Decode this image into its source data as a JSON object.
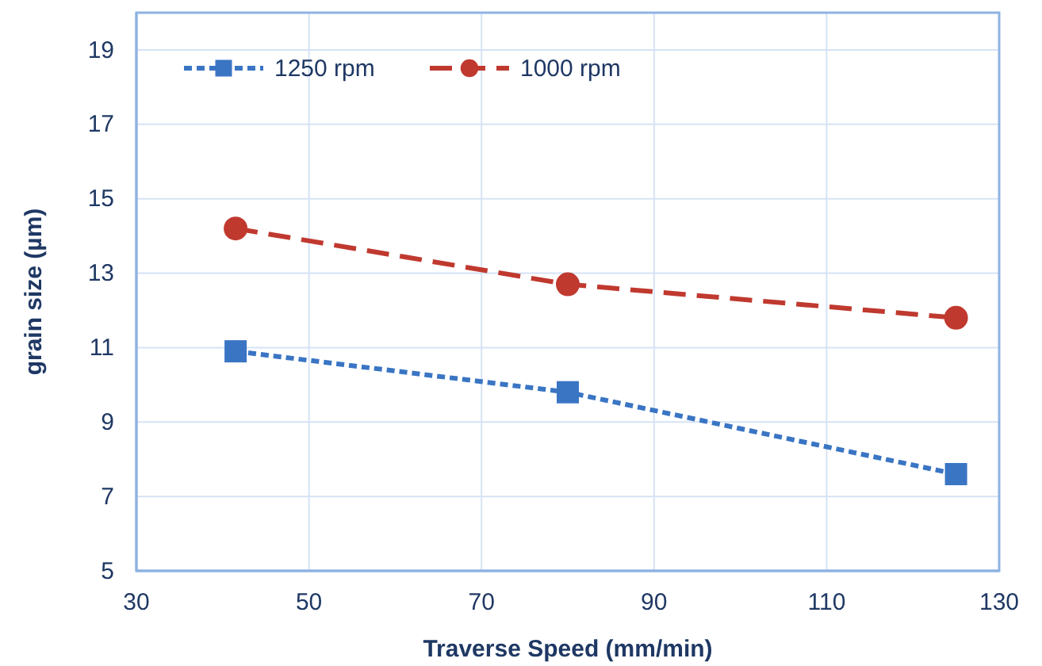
{
  "chart_data": {
    "type": "line",
    "xlabel": "Traverse Speed (mm/min)",
    "ylabel": "grain  size (µm)",
    "xlim": [
      30,
      130
    ],
    "xticks": [
      30,
      50,
      70,
      90,
      110,
      130
    ],
    "ylim": [
      5,
      20
    ],
    "yticks": [
      5,
      7,
      9,
      11,
      13,
      15,
      17,
      19
    ],
    "grid": true,
    "legend": "top left",
    "x": [
      41.5,
      80,
      125
    ],
    "series": [
      {
        "name": "1250 rpm",
        "color": "#3a75c4",
        "values": [
          10.9,
          9.8,
          7.6
        ],
        "marker": "square",
        "line_style": "dotted"
      },
      {
        "name": "1000 rpm",
        "color": "#c0392f",
        "values": [
          14.2,
          12.7,
          11.8
        ],
        "marker": "circle",
        "line_style": "dashed"
      }
    ]
  }
}
